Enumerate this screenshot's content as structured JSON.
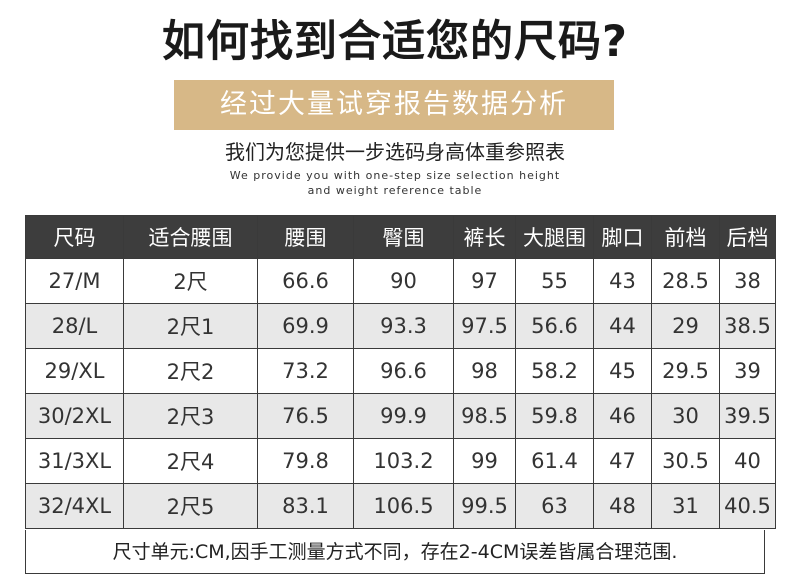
{
  "title": "如何找到合适您的尺码?",
  "banner": "经过大量试穿报告数据分析",
  "subtitle": "我们为您提供一步选码身高体重参照表",
  "english_line1": "We provide you with one-step size selection height",
  "english_line2": "and weight reference table",
  "table": {
    "headers": [
      "尺码",
      "适合腰围",
      "腰围",
      "臀围",
      "裤长",
      "大腿围",
      "脚口",
      "前档",
      "后档"
    ],
    "rows": [
      [
        "27/M",
        "2尺",
        "66.6",
        "90",
        "97",
        "55",
        "43",
        "28.5",
        "38"
      ],
      [
        "28/L",
        "2尺1",
        "69.9",
        "93.3",
        "97.5",
        "56.6",
        "44",
        "29",
        "38.5"
      ],
      [
        "29/XL",
        "2尺2",
        "73.2",
        "96.6",
        "98",
        "58.2",
        "45",
        "29.5",
        "39"
      ],
      [
        "30/2XL",
        "2尺3",
        "76.5",
        "99.9",
        "98.5",
        "59.8",
        "46",
        "30",
        "39.5"
      ],
      [
        "31/3XL",
        "2尺4",
        "79.8",
        "103.2",
        "99",
        "61.4",
        "47",
        "30.5",
        "40"
      ],
      [
        "32/4XL",
        "2尺5",
        "83.1",
        "106.5",
        "99.5",
        "63",
        "48",
        "31",
        "40.5"
      ]
    ]
  },
  "footnote": "尺寸单元:CM,因手工测量方式不同，存在2-4CM误差皆属合理范围.",
  "colors": {
    "banner_bg": "#d7b887",
    "header_bg": "#3d3d3d",
    "stripe_bg": "#e8e8e8"
  }
}
